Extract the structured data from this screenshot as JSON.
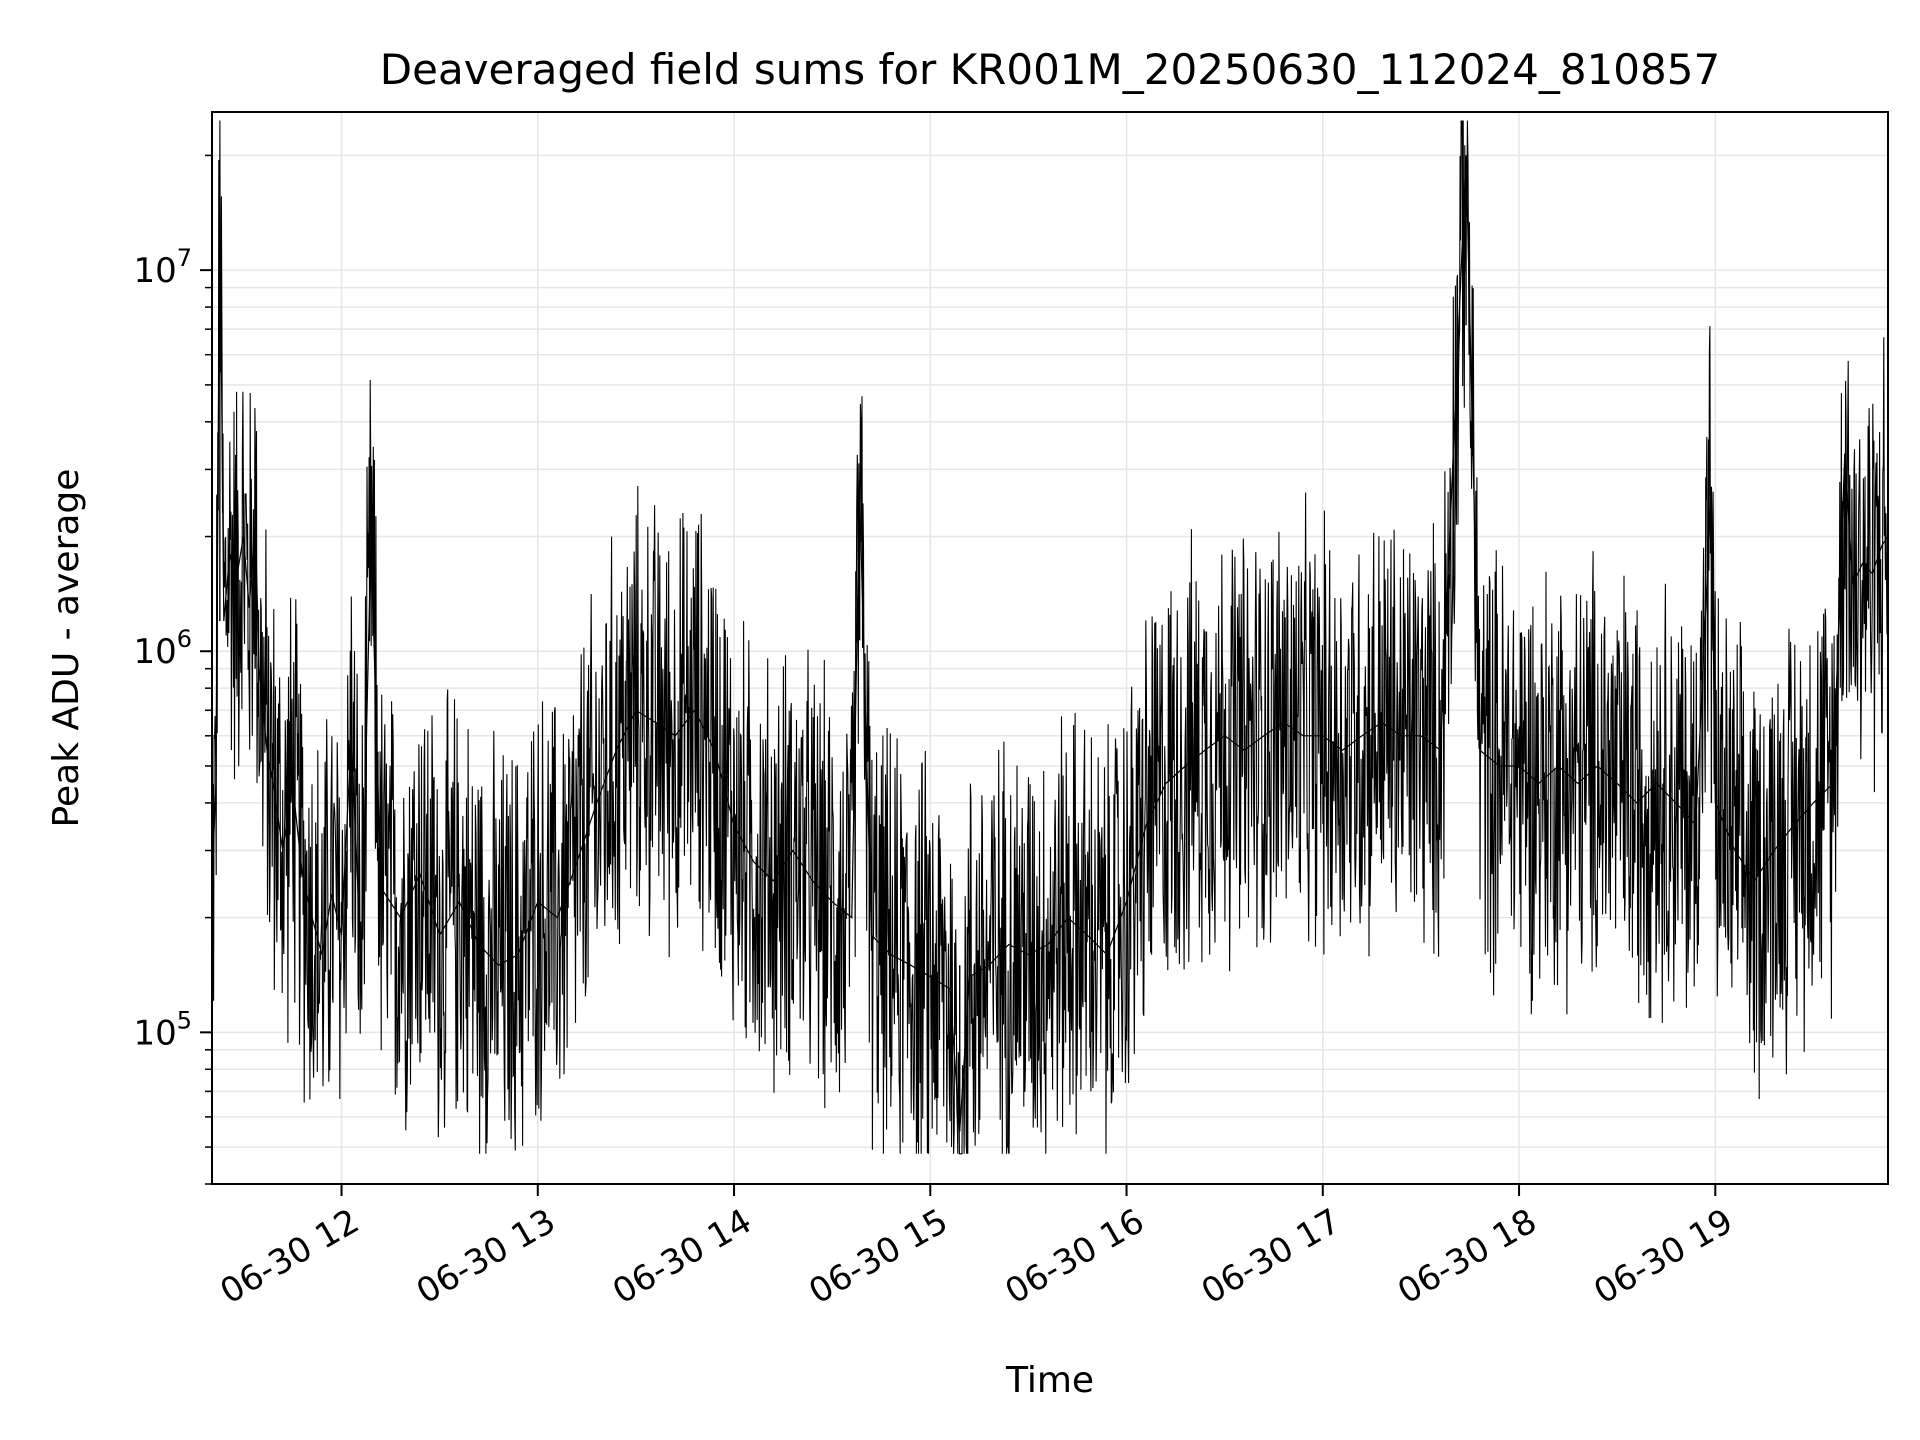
{
  "chart_data": {
    "type": "line",
    "title": "Deaveraged field sums for KR001M_20250630_112024_810857",
    "xlabel": "Time",
    "ylabel": "Peak ADU - average",
    "yscale": "log",
    "grid": true,
    "line_color": "#000000",
    "grid_color": "#e6e6e6",
    "x_range_hours": [
      11.34,
      19.88
    ],
    "ylim": [
      40000,
      26000000
    ],
    "x_ticks": [
      {
        "value": 12,
        "label": "06-30 12"
      },
      {
        "value": 13,
        "label": "06-30 13"
      },
      {
        "value": 14,
        "label": "06-30 14"
      },
      {
        "value": 15,
        "label": "06-30 15"
      },
      {
        "value": 16,
        "label": "06-30 16"
      },
      {
        "value": 17,
        "label": "06-30 17"
      },
      {
        "value": 18,
        "label": "06-30 18"
      },
      {
        "value": 19,
        "label": "06-30 19"
      }
    ],
    "y_ticks": [
      {
        "value": 100000,
        "base": "10",
        "exp": "5"
      },
      {
        "value": 1000000,
        "base": "10",
        "exp": "6"
      },
      {
        "value": 10000000,
        "base": "10",
        "exp": "7"
      }
    ],
    "series": [
      {
        "points": [
          [
            11.34,
            240000
          ],
          [
            11.36,
            450000
          ],
          [
            11.38,
            15000000
          ],
          [
            11.4,
            1200000
          ],
          [
            11.43,
            1800000
          ],
          [
            11.46,
            1500000
          ],
          [
            11.5,
            2000000
          ],
          [
            11.53,
            1300000
          ],
          [
            11.56,
            2200000
          ],
          [
            11.58,
            900000
          ],
          [
            11.62,
            550000
          ],
          [
            11.66,
            420000
          ],
          [
            11.7,
            300000
          ],
          [
            11.75,
            450000
          ],
          [
            11.8,
            260000
          ],
          [
            11.85,
            200000
          ],
          [
            11.9,
            160000
          ],
          [
            11.95,
            230000
          ],
          [
            12.0,
            180000
          ],
          [
            12.05,
            600000
          ],
          [
            12.1,
            150000
          ],
          [
            12.15,
            2000000
          ],
          [
            12.2,
            240000
          ],
          [
            12.3,
            200000
          ],
          [
            12.4,
            260000
          ],
          [
            12.5,
            180000
          ],
          [
            12.6,
            220000
          ],
          [
            12.7,
            170000
          ],
          [
            12.8,
            150000
          ],
          [
            12.9,
            160000
          ],
          [
            13.0,
            220000
          ],
          [
            13.1,
            200000
          ],
          [
            13.2,
            280000
          ],
          [
            13.3,
            400000
          ],
          [
            13.4,
            550000
          ],
          [
            13.5,
            700000
          ],
          [
            13.6,
            650000
          ],
          [
            13.7,
            600000
          ],
          [
            13.8,
            700000
          ],
          [
            13.9,
            550000
          ],
          [
            14.0,
            350000
          ],
          [
            14.1,
            280000
          ],
          [
            14.2,
            250000
          ],
          [
            14.3,
            300000
          ],
          [
            14.4,
            250000
          ],
          [
            14.5,
            220000
          ],
          [
            14.6,
            200000
          ],
          [
            14.64,
            2600000
          ],
          [
            14.7,
            180000
          ],
          [
            14.8,
            160000
          ],
          [
            14.9,
            150000
          ],
          [
            15.0,
            140000
          ],
          [
            15.1,
            130000
          ],
          [
            15.15,
            55000
          ],
          [
            15.2,
            140000
          ],
          [
            15.3,
            150000
          ],
          [
            15.4,
            170000
          ],
          [
            15.5,
            160000
          ],
          [
            15.6,
            170000
          ],
          [
            15.7,
            200000
          ],
          [
            15.8,
            180000
          ],
          [
            15.9,
            160000
          ],
          [
            16.0,
            220000
          ],
          [
            16.1,
            350000
          ],
          [
            16.2,
            450000
          ],
          [
            16.3,
            500000
          ],
          [
            16.4,
            550000
          ],
          [
            16.5,
            600000
          ],
          [
            16.6,
            550000
          ],
          [
            16.7,
            600000
          ],
          [
            16.8,
            650000
          ],
          [
            16.9,
            600000
          ],
          [
            17.0,
            600000
          ],
          [
            17.1,
            550000
          ],
          [
            17.2,
            600000
          ],
          [
            17.3,
            650000
          ],
          [
            17.4,
            600000
          ],
          [
            17.5,
            600000
          ],
          [
            17.6,
            550000
          ],
          [
            17.73,
            20000000
          ],
          [
            17.8,
            550000
          ],
          [
            17.9,
            500000
          ],
          [
            18.0,
            500000
          ],
          [
            18.1,
            450000
          ],
          [
            18.2,
            500000
          ],
          [
            18.3,
            450000
          ],
          [
            18.4,
            500000
          ],
          [
            18.5,
            450000
          ],
          [
            18.6,
            400000
          ],
          [
            18.7,
            450000
          ],
          [
            18.8,
            400000
          ],
          [
            18.9,
            350000
          ],
          [
            18.98,
            2700000
          ],
          [
            19.0,
            400000
          ],
          [
            19.1,
            300000
          ],
          [
            19.2,
            250000
          ],
          [
            19.3,
            300000
          ],
          [
            19.4,
            350000
          ],
          [
            19.5,
            400000
          ],
          [
            19.6,
            450000
          ],
          [
            19.66,
            3300000
          ],
          [
            19.7,
            1500000
          ],
          [
            19.75,
            1700000
          ],
          [
            19.8,
            1600000
          ],
          [
            19.85,
            1900000
          ],
          [
            19.88,
            2000000
          ]
        ]
      }
    ]
  }
}
